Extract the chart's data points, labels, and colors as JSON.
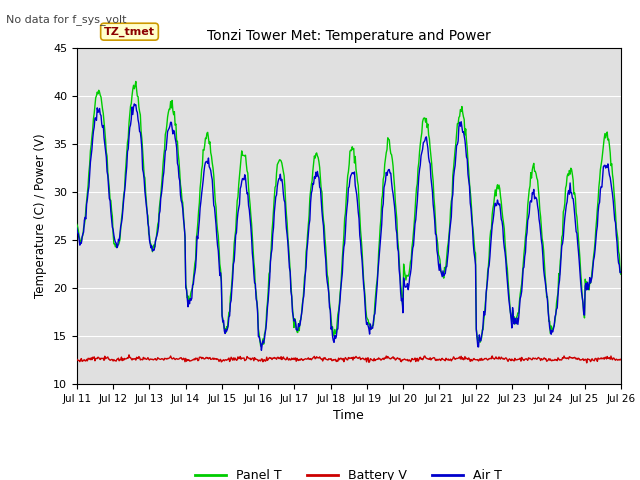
{
  "title": "Tonzi Tower Met: Temperature and Power",
  "ylabel": "Temperature (C) / Power (V)",
  "xlabel": "Time",
  "top_left_text": "No data for f_sys_volt",
  "annotation_label": "TZ_tmet",
  "ylim": [
    10,
    45
  ],
  "yticks": [
    10,
    15,
    20,
    25,
    30,
    35,
    40,
    45
  ],
  "xtick_labels": [
    "Jul 11",
    "Jul 12",
    "Jul 13",
    "Jul 14",
    "Jul 15",
    "Jul 16",
    "Jul 17",
    "Jul 18",
    "Jul 19",
    "Jul 20",
    "Jul 21",
    "Jul 22",
    "Jul 23",
    "Jul 24",
    "Jul 25",
    "Jul 26"
  ],
  "panel_color": "#00cc00",
  "battery_color": "#cc0000",
  "air_color": "#0000cc",
  "bg_color": "#e0e0e0",
  "legend_labels": [
    "Panel T",
    "Battery V",
    "Air T"
  ],
  "panel_peaks": [
    40.5,
    41.0,
    39.0,
    36.0,
    34.0,
    33.5,
    34.0,
    34.5,
    35.0,
    37.5,
    38.5,
    30.5,
    32.5,
    32.5,
    36.0
  ],
  "air_peaks": [
    38.5,
    39.0,
    37.0,
    33.5,
    31.5,
    31.5,
    32.0,
    32.0,
    32.5,
    35.5,
    37.0,
    29.0,
    30.0,
    30.0,
    33.0
  ],
  "panel_mins": [
    25.0,
    24.0,
    24.0,
    19.0,
    15.5,
    14.0,
    15.5,
    15.0,
    15.5,
    21.0,
    21.5,
    14.5,
    16.5,
    15.5,
    20.0
  ],
  "air_mins": [
    25.0,
    24.5,
    24.0,
    18.5,
    15.5,
    14.0,
    15.5,
    14.5,
    15.5,
    20.0,
    21.0,
    14.5,
    16.5,
    15.5,
    20.0
  ],
  "n_days": 15,
  "pts_per_day": 48,
  "battery_base": 12.5,
  "battery_noise": 0.1,
  "battery_solar_amp": 0.2
}
